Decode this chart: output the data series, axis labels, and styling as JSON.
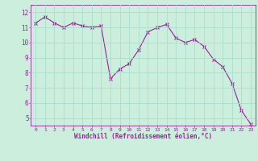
{
  "x": [
    0,
    1,
    2,
    3,
    4,
    5,
    6,
    7,
    8,
    9,
    10,
    11,
    12,
    13,
    14,
    15,
    16,
    17,
    18,
    19,
    20,
    21,
    22,
    23
  ],
  "y": [
    11.3,
    11.7,
    11.3,
    11.0,
    11.3,
    11.1,
    11.0,
    11.1,
    7.6,
    8.25,
    8.6,
    9.5,
    10.7,
    11.0,
    11.2,
    10.3,
    10.0,
    10.2,
    9.75,
    8.9,
    8.4,
    7.3,
    5.5,
    4.6
  ],
  "line_color": "#992299",
  "marker": "x",
  "bg_color": "#cceedd",
  "grid_color": "#aaddcc",
  "xlabel": "Windchill (Refroidissement éolien,°C)",
  "xlabel_color": "#992299",
  "tick_color": "#992299",
  "ylim": [
    4.5,
    12.5
  ],
  "yticks": [
    5,
    6,
    7,
    8,
    9,
    10,
    11,
    12
  ],
  "xticks": [
    0,
    1,
    2,
    3,
    4,
    5,
    6,
    7,
    8,
    9,
    10,
    11,
    12,
    13,
    14,
    15,
    16,
    17,
    18,
    19,
    20,
    21,
    22,
    23
  ],
  "xlim": [
    -0.5,
    23.5
  ]
}
